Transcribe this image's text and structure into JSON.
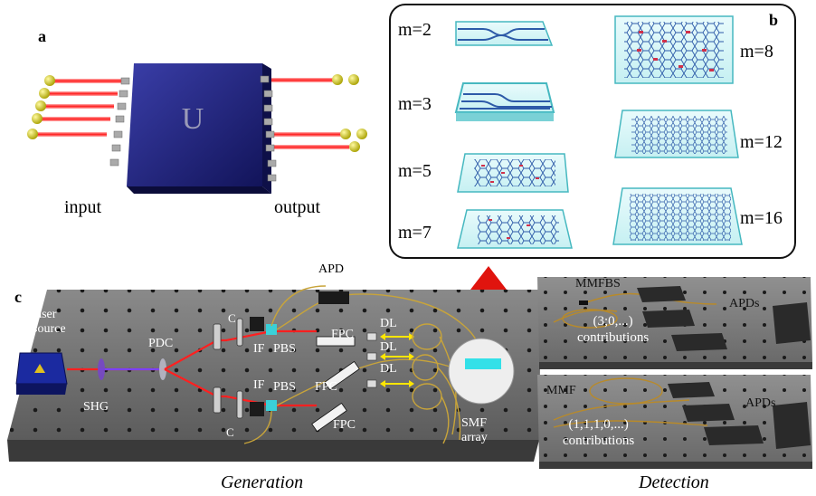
{
  "panel_a": {
    "label": "a",
    "chip_symbol": "U",
    "input_label": "input",
    "output_label": "output"
  },
  "panel_b": {
    "label": "b",
    "chips_left": [
      "m=2",
      "m=3",
      "m=5",
      "m=7"
    ],
    "chips_right": [
      "m=8",
      "m=12",
      "m=16"
    ]
  },
  "panel_c": {
    "label": "c",
    "apd_top": "APD",
    "laser": [
      "laser",
      "source"
    ],
    "shg": "SHG",
    "pdc": "PDC",
    "c_top": "C",
    "c_bottom": "C",
    "if_top": "IF",
    "if_bottom": "IF",
    "pbs_top": "PBS",
    "pbs_bottom": "PBS",
    "fpc1": "FPC",
    "fpc2": "FPC",
    "fpc3": "FPC",
    "dl1": "DL",
    "dl2": "DL",
    "dl3": "DL",
    "smf": [
      "SMF",
      "array"
    ],
    "caption": "Generation"
  },
  "detection": {
    "top": {
      "mm_label": "MMFBS",
      "apds_label": "APDs",
      "contrib": [
        "(3;0,...)",
        "contributions"
      ]
    },
    "bottom": {
      "mm_label": "MMF",
      "apds_label": "APDs",
      "contrib": [
        "(1,1,1,0,...)",
        "contributions"
      ]
    },
    "caption": "Detection"
  },
  "colors": {
    "chip": "#1d1f7a",
    "beam": "#ff2a2a",
    "waveguide": "#2a5aa0",
    "glass": "#9fe3e6",
    "table": "#6b6b6b"
  }
}
